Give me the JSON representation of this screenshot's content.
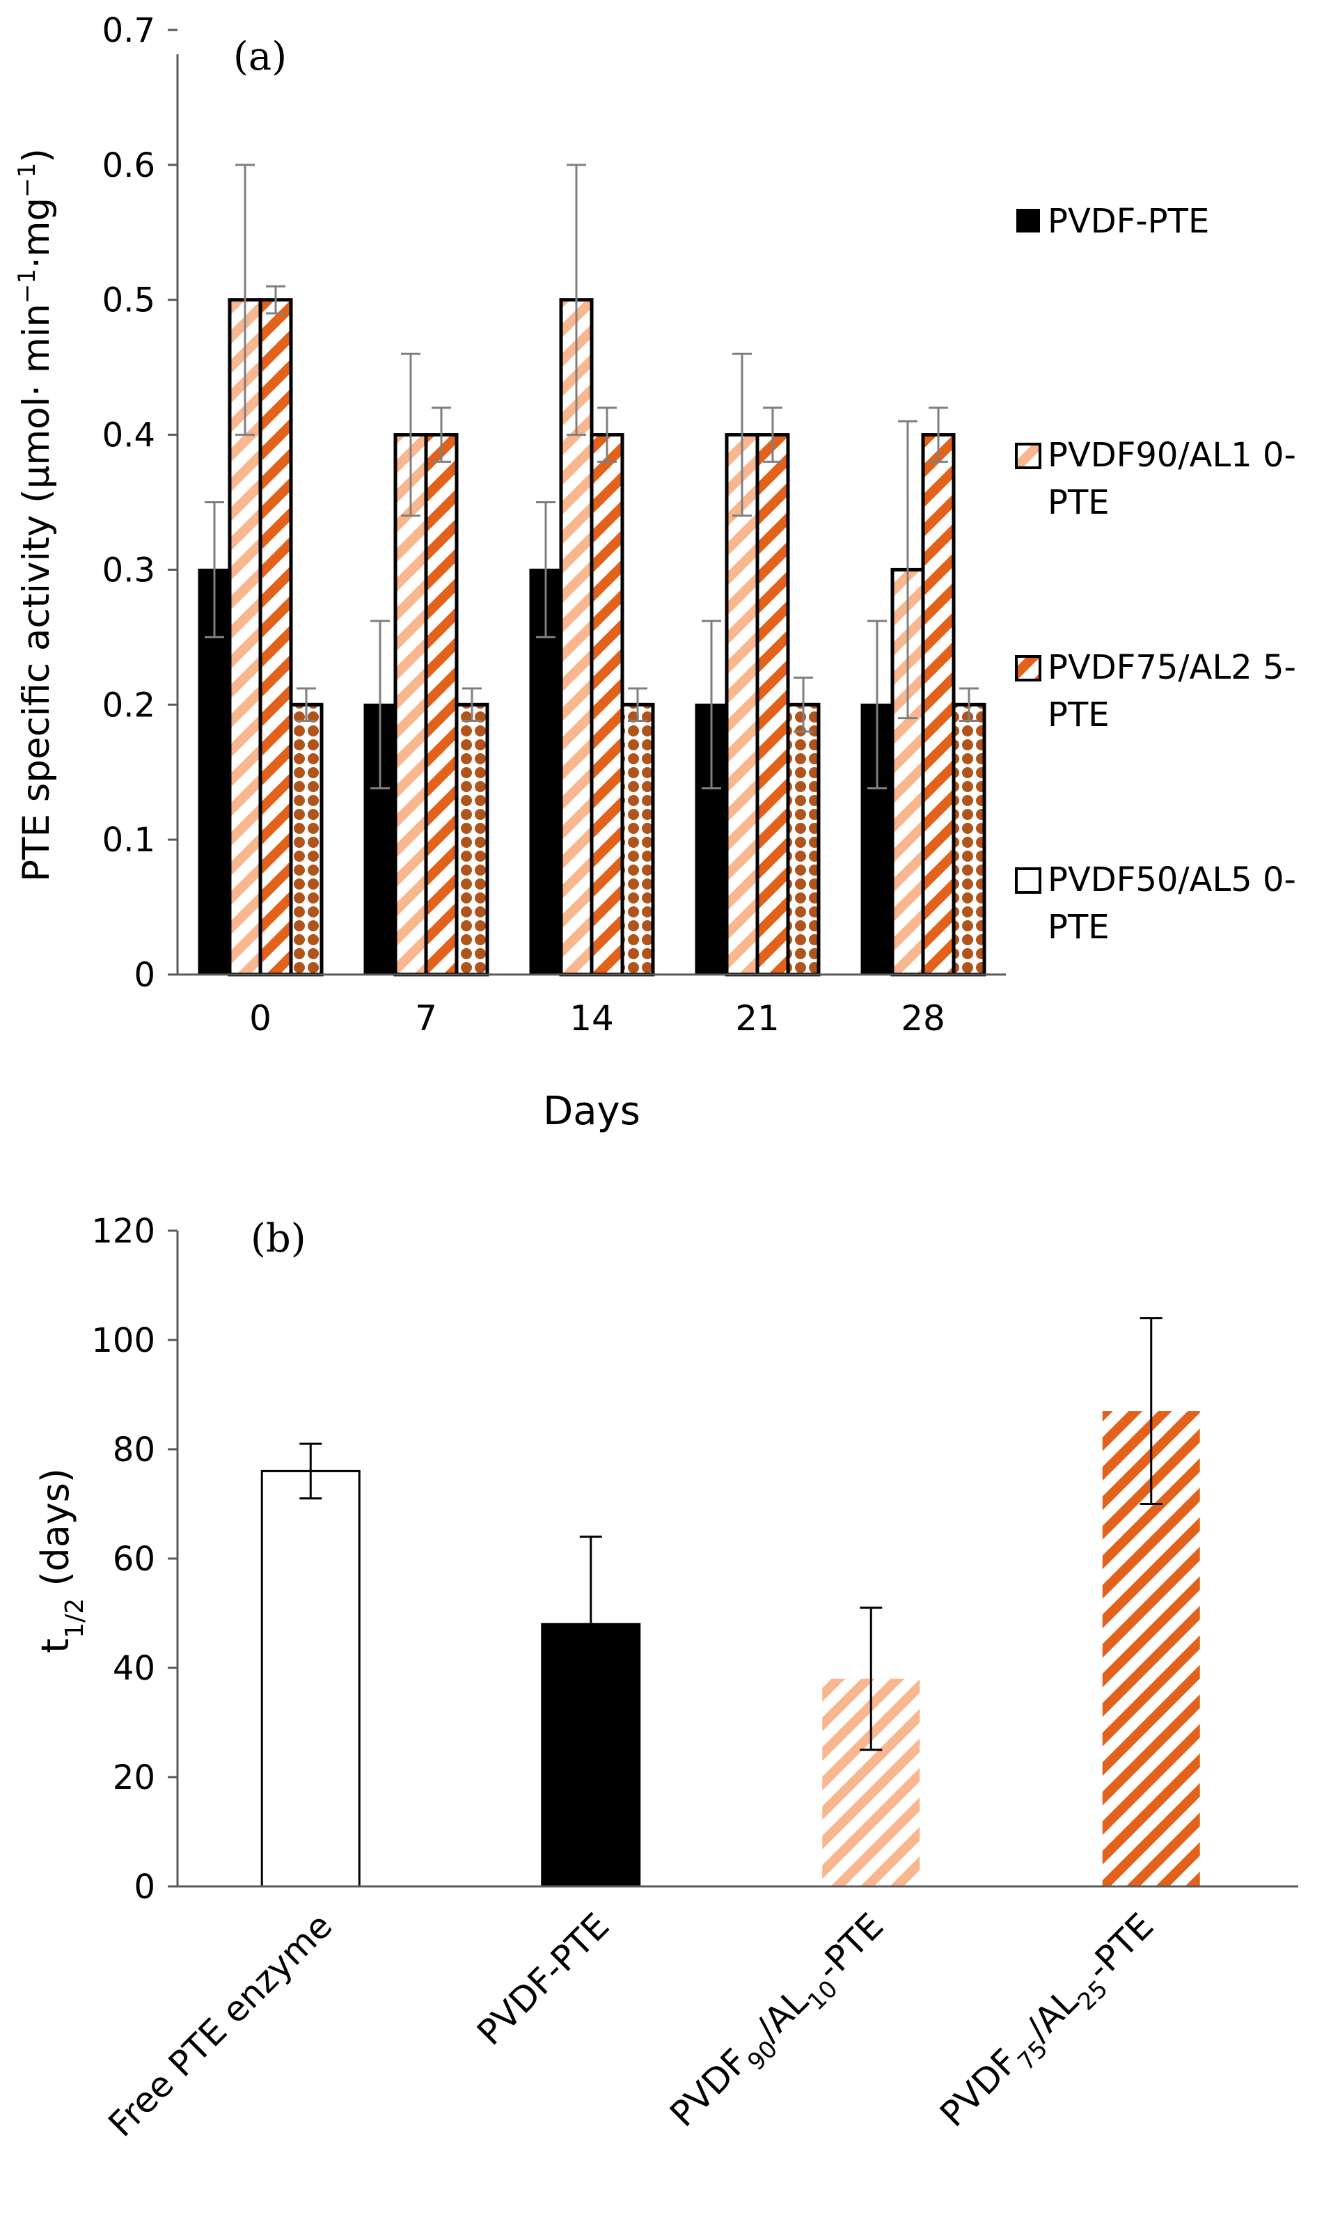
{
  "chart_data": [
    {
      "panel_label": "(a)",
      "type": "bar",
      "xlabel": "Days",
      "ylabel": "PTE specific activity (μmol· min−1·mg−1)",
      "ylabel_parts": {
        "main": "PTE specific activity (μmol· min",
        "sup1": "−1",
        "mid": "·mg",
        "sup2": "−1",
        "end": ")"
      },
      "ylim": [
        0,
        0.7
      ],
      "yticks": [
        "0",
        "0.1",
        "0.2",
        "0.3",
        "0.4",
        "0.5",
        "0.6",
        "0.7"
      ],
      "categories": [
        "0",
        "7",
        "14",
        "21",
        "28"
      ],
      "legend_position": "right",
      "series": [
        {
          "name": "PVDF-PTE",
          "legend_lines": [
            "PVDF-PTE"
          ],
          "pattern": "solid-black",
          "values": [
            0.3,
            0.2,
            0.3,
            0.2,
            0.2
          ],
          "errors": [
            0.05,
            0.062,
            0.05,
            0.062,
            0.062
          ]
        },
        {
          "name": "PVDF90/AL10-PTE",
          "legend_lines": [
            "PVDF90/AL1 0-",
            "PTE"
          ],
          "pattern": "light-orange-diagonal",
          "values": [
            0.5,
            0.4,
            0.5,
            0.4,
            0.3
          ],
          "errors": [
            0.1,
            0.06,
            0.1,
            0.06,
            0.11
          ]
        },
        {
          "name": "PVDF75/AL25-PTE",
          "legend_lines": [
            "PVDF75/AL2 5-",
            "PTE"
          ],
          "pattern": "dark-orange-diagonal",
          "values": [
            0.5,
            0.4,
            0.4,
            0.4,
            0.4
          ],
          "errors": [
            0.01,
            0.02,
            0.02,
            0.02,
            0.02
          ]
        },
        {
          "name": "PVDF50/AL50-PTE",
          "legend_lines": [
            "PVDF50/AL5 0-",
            "PTE"
          ],
          "pattern": "brown-dots",
          "values": [
            0.2,
            0.2,
            0.2,
            0.2,
            0.2
          ],
          "errors": [
            0.012,
            0.012,
            0.012,
            0.02,
            0.012
          ]
        }
      ],
      "colors": {
        "black": "#000000",
        "light_orange": "#F8B78E",
        "dark_orange": "#E2621B",
        "brown": "#B0541C",
        "axis": "#595959",
        "error": "#7f7f7f"
      }
    },
    {
      "panel_label": "(b)",
      "type": "bar",
      "xlabel": "",
      "ylabel": "t1/2 (days)",
      "ylabel_parts": {
        "main": "t",
        "sub": "1/2",
        "end": " (days)"
      },
      "ylim": [
        0,
        120
      ],
      "yticks": [
        "0",
        "20",
        "40",
        "60",
        "80",
        "100",
        "120"
      ],
      "categories": [
        {
          "label": "Free PTE enzyme",
          "parts": [
            "Free PTE enzyme"
          ]
        },
        {
          "label": "PVDF-PTE",
          "parts": [
            "PVDF-PTE"
          ]
        },
        {
          "label": "PVDF90/AL10-PTE",
          "parts": [
            "PVDF",
            "90",
            "/AL",
            "10",
            "-PTE"
          ]
        },
        {
          "label": "PVDF75/AL25-PTE",
          "parts": [
            "PVDF",
            "75",
            "/AL",
            "25",
            "-PTE"
          ]
        }
      ],
      "values": [
        76,
        48,
        38,
        87
      ],
      "errors": [
        5,
        16,
        13,
        17
      ],
      "patterns": [
        "white-outline",
        "solid-black",
        "light-orange-diagonal",
        "dark-orange-diagonal"
      ]
    }
  ]
}
